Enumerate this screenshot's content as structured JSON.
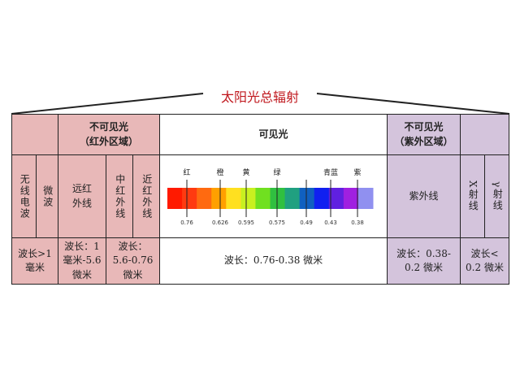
{
  "title": "太阳光总辐射",
  "header": {
    "infrared": "不可见光\n（红外区域）",
    "visible": "可见光",
    "ultraviolet": "不可见光\n（紫外区域）"
  },
  "bands": {
    "radio": "无线电波",
    "microwave": "微波",
    "far_ir": "远红外线",
    "mid_ir": "中红外线",
    "near_ir": "近红外线",
    "uv": "紫外线",
    "xray": "X射线",
    "gamma": "γ射线"
  },
  "wavelengths": {
    "radio_micro": "波长>1\n毫米",
    "far_ir": "波长：1\n毫米-5.6\n微米",
    "mid_near_ir": "波长：\n5.6-0.76\n微米",
    "visible": "波长：0.76-0.38 微米",
    "uv": "波长：0.38-\n0.2 微米",
    "xray_gamma": "波长<\n0.2 微米"
  },
  "spectrum": {
    "colors": [
      "红",
      "橙",
      "黄",
      "绿",
      "青蓝",
      "紫"
    ],
    "ticks": [
      "0.76",
      "0.626",
      "0.595",
      "0.575",
      "0.49",
      "0.43",
      "0.38"
    ],
    "gradient": [
      "#ff1a00",
      "#ff3a10",
      "#ff6a10",
      "#ffa000",
      "#ffe020",
      "#c8f020",
      "#70e020",
      "#30c040",
      "#20a080",
      "#1060c0",
      "#1020f0",
      "#6020e0",
      "#a020e0",
      "#9090f0"
    ]
  }
}
